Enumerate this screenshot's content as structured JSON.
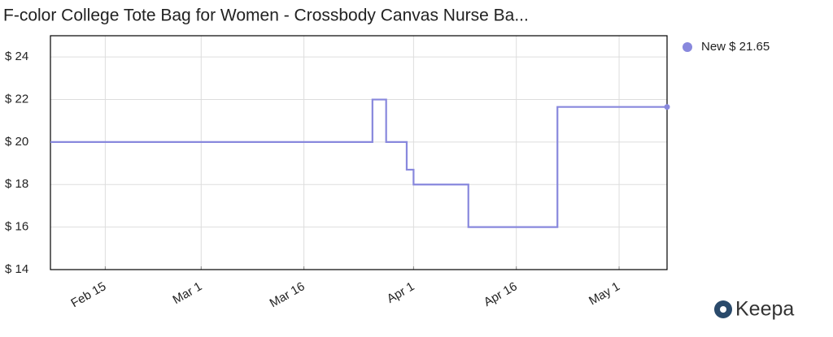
{
  "chart_data": {
    "type": "line",
    "step": "post",
    "title": "F-color College Tote Bag for Women - Crossbody Canvas Nurse Ba...",
    "x": [
      "Feb 7",
      "Mar 26",
      "Mar 28",
      "Mar 31",
      "Apr 1",
      "Apr 9",
      "Apr 22",
      "May 8"
    ],
    "series": [
      {
        "name": "New $ 21.65",
        "color": "#8888dd",
        "values": [
          20,
          22,
          20,
          18.7,
          18,
          16,
          21.65,
          21.65
        ]
      }
    ],
    "xlim": [
      "Feb 7",
      "May 8"
    ],
    "xticks": [
      "Feb 15",
      "Mar 1",
      "Mar 16",
      "Apr 1",
      "Apr 16",
      "May 1"
    ],
    "ylim": [
      14,
      25
    ],
    "yticks": [
      {
        "value": 14,
        "label": "$ 14"
      },
      {
        "value": 16,
        "label": "$ 16"
      },
      {
        "value": 18,
        "label": "$ 18"
      },
      {
        "value": 20,
        "label": "$ 20"
      },
      {
        "value": 22,
        "label": "$ 22"
      },
      {
        "value": 24,
        "label": "$ 24"
      }
    ],
    "grid": true,
    "legend": "right"
  },
  "logo": "Keepa"
}
